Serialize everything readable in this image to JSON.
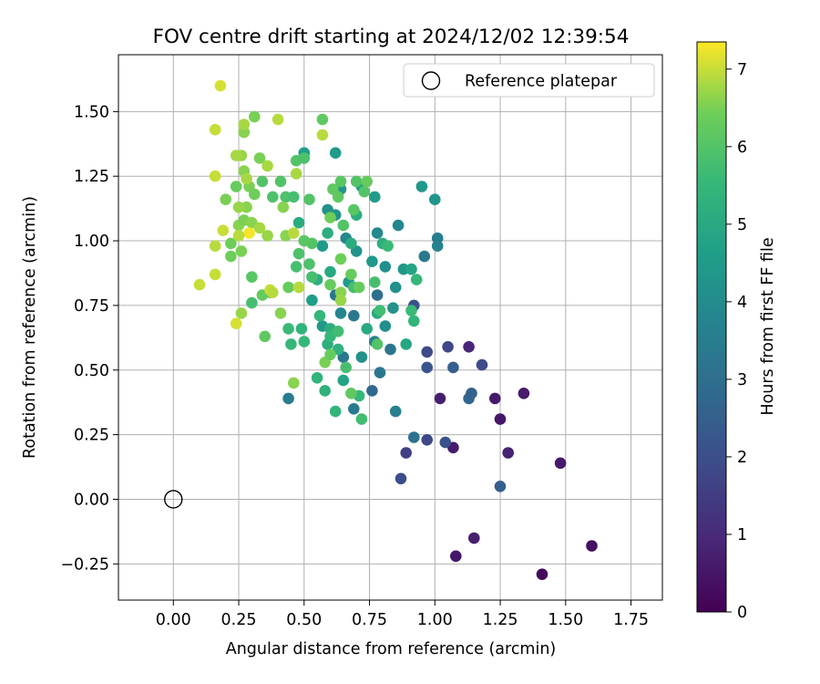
{
  "chart_data": {
    "type": "scatter",
    "title": "FOV centre drift starting at 2024/12/02 12:39:54",
    "xlabel": "Angular distance from reference (arcmin)",
    "ylabel": "Rotation from reference (arcmin)",
    "xlim": [
      -0.21,
      1.87
    ],
    "ylim": [
      -0.39,
      1.72
    ],
    "grid": true,
    "x_ticks": [
      "0.00",
      "0.25",
      "0.50",
      "0.75",
      "1.00",
      "1.25",
      "1.50",
      "1.75"
    ],
    "y_ticks": [
      "−0.25",
      "0.00",
      "0.25",
      "0.50",
      "0.75",
      "1.00",
      "1.25",
      "1.50"
    ],
    "legend": {
      "position": "top-right",
      "entries": [
        "Reference platepar"
      ]
    },
    "reference_point": {
      "x": 0.0,
      "y": 0.0,
      "label": "Reference platepar"
    },
    "colorbar": {
      "label": "Hours from first FF file",
      "range": [
        0,
        7.35
      ],
      "ticks": [
        "0",
        "1",
        "2",
        "3",
        "4",
        "5",
        "6",
        "7"
      ],
      "colormap": "viridis"
    },
    "series": [
      {
        "points": [
          [
            1.41,
            -0.29,
            0.2
          ],
          [
            1.6,
            -0.18,
            0.3
          ],
          [
            1.08,
            -0.22,
            0.5
          ],
          [
            1.15,
            -0.15,
            0.7
          ],
          [
            1.48,
            0.14,
            0.6
          ],
          [
            1.07,
            0.2,
            0.6
          ],
          [
            1.28,
            0.18,
            0.8
          ],
          [
            1.25,
            0.31,
            0.5
          ],
          [
            1.34,
            0.41,
            0.6
          ],
          [
            1.23,
            0.39,
            0.6
          ],
          [
            1.02,
            0.39,
            0.7
          ],
          [
            1.13,
            0.59,
            0.9
          ],
          [
            0.89,
            0.18,
            1.6
          ],
          [
            0.87,
            0.08,
            2.0
          ],
          [
            0.97,
            0.23,
            1.8
          ],
          [
            1.04,
            0.22,
            2.1
          ],
          [
            1.25,
            0.05,
            2.5
          ],
          [
            1.18,
            0.52,
            1.9
          ],
          [
            1.05,
            0.59,
            1.8
          ],
          [
            0.97,
            0.57,
            1.9
          ],
          [
            0.97,
            0.51,
            2.2
          ],
          [
            1.07,
            0.51,
            2.5
          ],
          [
            1.13,
            0.39,
            2.7
          ],
          [
            1.14,
            0.41,
            2.6
          ],
          [
            0.92,
            0.75,
            2.1
          ],
          [
            0.76,
            0.42,
            2.8
          ],
          [
            0.92,
            0.24,
            3.1
          ],
          [
            0.85,
            0.34,
            3.6
          ],
          [
            0.44,
            0.39,
            3.5
          ],
          [
            0.69,
            0.35,
            3.4
          ],
          [
            0.69,
            0.71,
            3.3
          ],
          [
            0.65,
            0.55,
            3.3
          ],
          [
            0.62,
            0.79,
            3.2
          ],
          [
            0.78,
            0.79,
            3.0
          ],
          [
            0.77,
            0.61,
            3.6
          ],
          [
            0.79,
            0.49,
            3.3
          ],
          [
            0.64,
            0.72,
            3.8
          ],
          [
            0.83,
            0.58,
            3.2
          ],
          [
            0.66,
            1.01,
            3.8
          ],
          [
            0.96,
            0.94,
            3.4
          ],
          [
            1.01,
            0.98,
            3.7
          ],
          [
            1.01,
            1.01,
            3.5
          ],
          [
            0.86,
            1.06,
            3.8
          ],
          [
            0.78,
            1.03,
            3.9
          ],
          [
            0.7,
            0.96,
            4.2
          ],
          [
            0.57,
            0.67,
            4.4
          ],
          [
            0.72,
            0.55,
            4.2
          ],
          [
            0.81,
            0.67,
            4.1
          ],
          [
            0.84,
            0.74,
            4.2
          ],
          [
            0.76,
            0.92,
            4.4
          ],
          [
            0.81,
            0.9,
            4.1
          ],
          [
            0.95,
            1.21,
            4.4
          ],
          [
            1.0,
            1.16,
            4.3
          ],
          [
            0.88,
            0.89,
            4.4
          ],
          [
            0.85,
            0.82,
            4.2
          ],
          [
            0.67,
            0.84,
            4.5
          ],
          [
            0.53,
            0.77,
            4.6
          ],
          [
            0.57,
            0.98,
            4.5
          ],
          [
            0.64,
            1.2,
            4.3
          ],
          [
            0.62,
            1.34,
            4.5
          ],
          [
            0.5,
            1.34,
            4.6
          ],
          [
            0.59,
            1.12,
            4.2
          ],
          [
            0.62,
            1.1,
            4.3
          ],
          [
            0.77,
            1.17,
            4.5
          ],
          [
            0.72,
            1.21,
            4.6
          ],
          [
            0.65,
            0.46,
            4.8
          ],
          [
            0.91,
            0.89,
            4.8
          ],
          [
            0.89,
            0.6,
            4.9
          ],
          [
            0.78,
            0.72,
            5.0
          ],
          [
            0.74,
            0.66,
            5.0
          ],
          [
            0.6,
            0.66,
            5.2
          ],
          [
            0.55,
            0.85,
            5.2
          ],
          [
            0.6,
            0.88,
            5.0
          ],
          [
            0.59,
            1.03,
            5.2
          ],
          [
            0.48,
            1.07,
            5.1
          ],
          [
            0.7,
            1.1,
            5.2
          ],
          [
            0.68,
            0.99,
            5.1
          ],
          [
            0.8,
            0.99,
            5.2
          ],
          [
            0.58,
            0.42,
            5.3
          ],
          [
            0.55,
            0.47,
            5.4
          ],
          [
            0.62,
            0.34,
            5.4
          ],
          [
            0.71,
            0.4,
            5.5
          ],
          [
            0.63,
            0.58,
            5.3
          ],
          [
            0.59,
            0.6,
            5.2
          ],
          [
            0.5,
            0.61,
            5.5
          ],
          [
            0.49,
            0.66,
            5.4
          ],
          [
            0.44,
            0.66,
            5.6
          ],
          [
            0.45,
            0.6,
            5.5
          ],
          [
            0.72,
            0.31,
            5.7
          ],
          [
            0.66,
            0.51,
            5.8
          ],
          [
            0.56,
            0.71,
            5.5
          ],
          [
            0.6,
            0.63,
            5.5
          ],
          [
            0.92,
            0.69,
            5.4
          ],
          [
            0.93,
            0.85,
            5.5
          ],
          [
            0.91,
            0.73,
            5.6
          ],
          [
            0.79,
            0.73,
            5.7
          ],
          [
            0.82,
            0.98,
            5.6
          ],
          [
            0.77,
            0.84,
            5.8
          ],
          [
            0.69,
            0.82,
            5.8
          ],
          [
            0.63,
            0.65,
            5.7
          ],
          [
            0.53,
            0.86,
            5.8
          ],
          [
            0.52,
            0.91,
            5.9
          ],
          [
            0.48,
            0.95,
            5.9
          ],
          [
            0.53,
            0.99,
            6.0
          ],
          [
            0.5,
            1.0,
            6.1
          ],
          [
            0.47,
            0.9,
            5.8
          ],
          [
            0.43,
            1.17,
            5.9
          ],
          [
            0.46,
            1.17,
            5.8
          ],
          [
            0.38,
            1.17,
            5.9
          ],
          [
            0.41,
            1.23,
            6.0
          ],
          [
            0.34,
            1.23,
            6.0
          ],
          [
            0.47,
            1.31,
            6.0
          ],
          [
            0.5,
            1.32,
            5.9
          ],
          [
            0.52,
            1.16,
            6.0
          ],
          [
            0.57,
            1.47,
            6.2
          ],
          [
            0.63,
            1.17,
            6.2
          ],
          [
            0.64,
            1.23,
            6.1
          ],
          [
            0.7,
            1.23,
            6.0
          ],
          [
            0.73,
            1.19,
            6.0
          ],
          [
            0.74,
            1.23,
            6.3
          ],
          [
            0.69,
            1.12,
            6.1
          ],
          [
            0.65,
            1.06,
            6.0
          ],
          [
            0.68,
            0.87,
            6.3
          ],
          [
            0.71,
            0.82,
            6.3
          ],
          [
            0.78,
            0.6,
            6.0
          ],
          [
            0.58,
            0.53,
            6.5
          ],
          [
            0.6,
            0.56,
            6.3
          ],
          [
            0.68,
            0.41,
            6.2
          ],
          [
            0.46,
            0.45,
            6.6
          ],
          [
            0.44,
            0.82,
            6.3
          ],
          [
            0.37,
            0.8,
            6.4
          ],
          [
            0.34,
            0.79,
            6.3
          ],
          [
            0.3,
            0.86,
            6.1
          ],
          [
            0.3,
            0.76,
            5.8
          ],
          [
            0.35,
            0.63,
            6.2
          ],
          [
            0.26,
            0.72,
            6.7
          ],
          [
            0.24,
            0.68,
            7.1
          ],
          [
            0.26,
            0.96,
            6.5
          ],
          [
            0.22,
            0.99,
            6.4
          ],
          [
            0.22,
            0.94,
            6.4
          ],
          [
            0.25,
            1.06,
            6.6
          ],
          [
            0.27,
            1.08,
            6.5
          ],
          [
            0.3,
            1.07,
            6.6
          ],
          [
            0.28,
            1.13,
            6.6
          ],
          [
            0.25,
            1.13,
            6.7
          ],
          [
            0.24,
            1.21,
            6.3
          ],
          [
            0.29,
            1.21,
            6.5
          ],
          [
            0.31,
            1.18,
            6.4
          ],
          [
            0.27,
            1.27,
            6.6
          ],
          [
            0.28,
            1.24,
            6.8
          ],
          [
            0.26,
            1.33,
            6.7
          ],
          [
            0.24,
            1.33,
            6.8
          ],
          [
            0.27,
            1.42,
            6.6
          ],
          [
            0.27,
            1.45,
            6.8
          ],
          [
            0.31,
            1.48,
            6.5
          ],
          [
            0.33,
            1.32,
            6.5
          ],
          [
            0.36,
            1.29,
            6.8
          ],
          [
            0.4,
            1.47,
            6.9
          ],
          [
            0.42,
            1.13,
            6.6
          ],
          [
            0.47,
            1.26,
            6.8
          ],
          [
            0.57,
            1.41,
            6.9
          ],
          [
            0.6,
            1.09,
            6.4
          ],
          [
            0.61,
            1.2,
            6.2
          ],
          [
            0.64,
            0.93,
            6.4
          ],
          [
            0.64,
            0.8,
            6.6
          ],
          [
            0.64,
            0.77,
            6.7
          ],
          [
            0.6,
            0.83,
            6.3
          ],
          [
            0.48,
            0.82,
            6.9
          ],
          [
            0.37,
            0.81,
            7.0
          ],
          [
            0.41,
            0.72,
            6.6
          ],
          [
            0.36,
            1.02,
            6.7
          ],
          [
            0.43,
            1.02,
            6.6
          ],
          [
            0.46,
            1.03,
            6.9
          ],
          [
            0.33,
            1.05,
            6.8
          ],
          [
            0.2,
            1.16,
            6.5
          ],
          [
            0.19,
            1.04,
            7.0
          ],
          [
            0.16,
            0.98,
            6.9
          ],
          [
            0.16,
            0.87,
            7.0
          ],
          [
            0.1,
            0.83,
            7.0
          ],
          [
            0.16,
            1.25,
            7.0
          ],
          [
            0.16,
            1.43,
            7.0
          ],
          [
            0.18,
            1.6,
            7.1
          ],
          [
            0.29,
            1.03,
            7.3
          ],
          [
            0.25,
            1.02,
            6.9
          ],
          [
            0.38,
            0.8,
            6.9
          ]
        ]
      }
    ]
  }
}
